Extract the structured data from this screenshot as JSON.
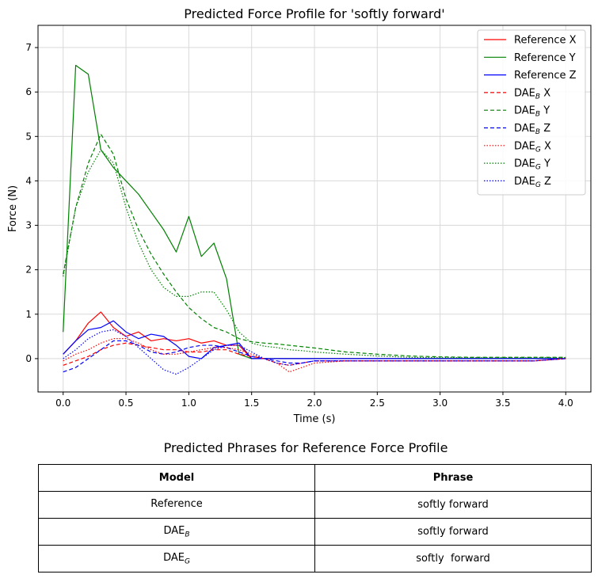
{
  "chart_data": {
    "type": "line",
    "title": "Predicted Force Profile for 'softly forward'",
    "xlabel": "Time (s)",
    "ylabel": "Force (N)",
    "xlim": [
      -0.2,
      4.2
    ],
    "ylim": [
      -0.75,
      7.5
    ],
    "xticks": [
      "0.0",
      "0.5",
      "1.0",
      "1.5",
      "2.0",
      "2.5",
      "3.0",
      "3.5",
      "4.0"
    ],
    "yticks": [
      "0",
      "1",
      "2",
      "3",
      "4",
      "5",
      "6",
      "7"
    ],
    "grid": true,
    "legend_position": "top-right",
    "x": [
      0,
      0.1,
      0.2,
      0.3,
      0.4,
      0.5,
      0.6,
      0.7,
      0.8,
      0.9,
      1.0,
      1.1,
      1.2,
      1.3,
      1.4,
      1.5,
      1.6,
      1.7,
      1.8,
      1.9,
      2.0,
      2.25,
      2.5,
      2.75,
      3.0,
      3.25,
      3.5,
      3.75,
      4.0
    ],
    "series": [
      {
        "name": "Reference X",
        "color": "#ff0000",
        "style": "solid",
        "values": [
          0.1,
          0.4,
          0.8,
          1.05,
          0.7,
          0.5,
          0.6,
          0.4,
          0.45,
          0.4,
          0.45,
          0.35,
          0.4,
          0.3,
          0.3,
          0.0,
          0.0,
          0.0,
          0.0,
          0.0,
          0.0,
          0.0,
          0.0,
          0.0,
          0.0,
          0.0,
          0.0,
          0.0,
          0.0
        ]
      },
      {
        "name": "Reference Y",
        "color": "#008000",
        "style": "solid",
        "values": [
          0.6,
          6.6,
          6.4,
          4.7,
          4.3,
          4.0,
          3.7,
          3.3,
          2.9,
          2.4,
          3.2,
          2.3,
          2.6,
          1.8,
          0.1,
          0.0,
          0.0,
          0.0,
          0.0,
          0.0,
          0.0,
          0.0,
          0.0,
          0.0,
          0.0,
          0.0,
          0.0,
          0.0,
          0.0
        ]
      },
      {
        "name": "Reference Z",
        "color": "#0000ff",
        "style": "solid",
        "values": [
          0.1,
          0.4,
          0.65,
          0.7,
          0.85,
          0.6,
          0.45,
          0.55,
          0.5,
          0.3,
          0.05,
          0.0,
          0.25,
          0.3,
          0.35,
          0.0,
          0.0,
          0.0,
          0.0,
          0.0,
          0.0,
          0.0,
          0.0,
          0.0,
          0.0,
          0.0,
          0.0,
          0.0,
          0.0
        ]
      },
      {
        "name": "DAE_B X",
        "color": "#ff0000",
        "style": "dashed",
        "values": [
          -0.15,
          -0.05,
          0.05,
          0.2,
          0.3,
          0.35,
          0.3,
          0.25,
          0.2,
          0.2,
          0.15,
          0.15,
          0.2,
          0.2,
          0.1,
          0.05,
          0.0,
          -0.1,
          -0.15,
          -0.1,
          -0.05,
          -0.05,
          -0.05,
          -0.05,
          -0.05,
          -0.05,
          -0.05,
          -0.05,
          0.0
        ]
      },
      {
        "name": "DAE_B Y",
        "color": "#008000",
        "style": "dashed",
        "values": [
          1.9,
          3.4,
          4.4,
          5.05,
          4.6,
          3.6,
          2.9,
          2.35,
          1.9,
          1.5,
          1.15,
          0.9,
          0.7,
          0.6,
          0.45,
          0.38,
          0.35,
          0.33,
          0.3,
          0.27,
          0.24,
          0.15,
          0.1,
          0.06,
          0.04,
          0.03,
          0.03,
          0.03,
          0.03
        ]
      },
      {
        "name": "DAE_B Z",
        "color": "#0000ff",
        "style": "dashed",
        "values": [
          -0.3,
          -0.2,
          0.0,
          0.2,
          0.4,
          0.4,
          0.3,
          0.15,
          0.1,
          0.15,
          0.25,
          0.3,
          0.3,
          0.25,
          0.15,
          0.05,
          0.0,
          -0.05,
          -0.1,
          -0.1,
          -0.05,
          -0.05,
          -0.05,
          -0.05,
          -0.05,
          -0.05,
          -0.05,
          -0.05,
          0.0
        ]
      },
      {
        "name": "DAE_G X",
        "color": "#ff0000",
        "style": "dotted",
        "values": [
          -0.05,
          0.1,
          0.2,
          0.35,
          0.45,
          0.45,
          0.35,
          0.2,
          0.1,
          0.1,
          0.15,
          0.2,
          0.25,
          0.25,
          0.2,
          0.1,
          0.0,
          -0.1,
          -0.3,
          -0.2,
          -0.1,
          -0.05,
          -0.05,
          -0.05,
          -0.05,
          -0.05,
          -0.05,
          -0.05,
          0.0
        ]
      },
      {
        "name": "DAE_G Y",
        "color": "#008000",
        "style": "dotted",
        "values": [
          1.85,
          3.4,
          4.2,
          4.7,
          4.4,
          3.4,
          2.6,
          2.0,
          1.6,
          1.4,
          1.4,
          1.5,
          1.5,
          1.1,
          0.6,
          0.35,
          0.28,
          0.25,
          0.2,
          0.18,
          0.15,
          0.1,
          0.06,
          0.03,
          0.02,
          0.02,
          0.02,
          0.02,
          0.02
        ]
      },
      {
        "name": "DAE_G Z",
        "color": "#0000ff",
        "style": "dotted",
        "values": [
          0.0,
          0.2,
          0.45,
          0.6,
          0.65,
          0.5,
          0.25,
          0.0,
          -0.25,
          -0.35,
          -0.2,
          0.0,
          0.2,
          0.3,
          0.3,
          0.15,
          0.0,
          -0.1,
          -0.15,
          -0.1,
          -0.05,
          -0.05,
          -0.05,
          -0.05,
          -0.05,
          -0.05,
          -0.05,
          -0.05,
          0.0
        ]
      }
    ]
  },
  "legend": [
    {
      "base": "Reference",
      "sub": "",
      "axis": "X"
    },
    {
      "base": "Reference",
      "sub": "",
      "axis": "Y"
    },
    {
      "base": "Reference",
      "sub": "",
      "axis": "Z"
    },
    {
      "base": "DAE",
      "sub": "B",
      "axis": "X"
    },
    {
      "base": "DAE",
      "sub": "B",
      "axis": "Y"
    },
    {
      "base": "DAE",
      "sub": "B",
      "axis": "Z"
    },
    {
      "base": "DAE",
      "sub": "G",
      "axis": "X"
    },
    {
      "base": "DAE",
      "sub": "G",
      "axis": "Y"
    },
    {
      "base": "DAE",
      "sub": "G",
      "axis": "Z"
    }
  ],
  "table": {
    "title": "Predicted Phrases for Reference Force Profile",
    "headers": [
      "Model",
      "Phrase"
    ],
    "rows": [
      {
        "model": "Reference",
        "model_sub": "",
        "phrase": "softly forward"
      },
      {
        "model": "DAE",
        "model_sub": "B",
        "phrase": "softly forward"
      },
      {
        "model": "DAE",
        "model_sub": "G",
        "phrase": "softly  forward"
      }
    ]
  }
}
